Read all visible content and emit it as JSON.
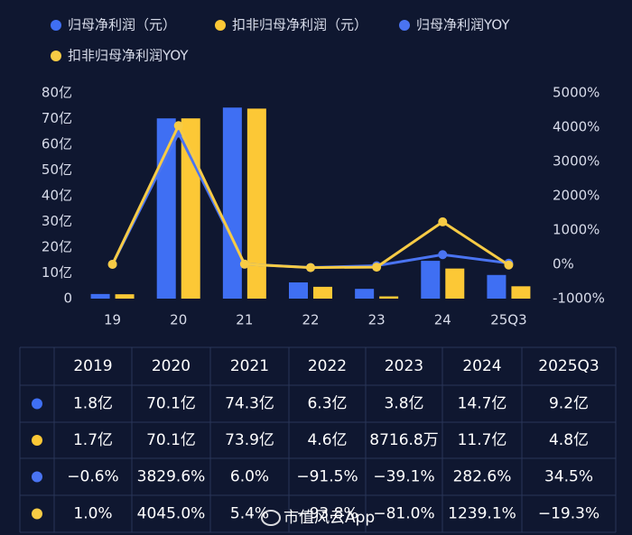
{
  "chart_data": {
    "type": "bar",
    "categories": [
      "19",
      "20",
      "21",
      "22",
      "23",
      "24",
      "25Q3"
    ],
    "series": [
      {
        "name": "归母净利润（元）",
        "type": "bar",
        "color": "#3f6ff3",
        "values": [
          1.8,
          70.1,
          74.3,
          6.3,
          3.8,
          14.7,
          9.2
        ]
      },
      {
        "name": "扣非归母净利润（元）",
        "type": "bar",
        "color": "#fcc836",
        "values": [
          1.7,
          70.1,
          73.9,
          4.6,
          0.87168,
          11.7,
          4.8
        ]
      },
      {
        "name": "归母净利润YOY",
        "type": "line",
        "axis": "y2",
        "color": "#4a74f2",
        "values": [
          -0.6,
          3829.6,
          6.0,
          -91.5,
          -39.1,
          282.6,
          34.5
        ]
      },
      {
        "name": "扣非归母净利润YOY",
        "type": "line",
        "axis": "y2",
        "color": "#f7cb45",
        "values": [
          1.0,
          4045.0,
          5.4,
          -93.8,
          -81.0,
          1239.1,
          -19.3
        ]
      }
    ],
    "ylim": [
      0,
      80
    ],
    "yticks": [
      0,
      {
        "value": 10,
        "label": "10亿"
      },
      {
        "value": 20,
        "label": "20亿"
      },
      {
        "value": 30,
        "label": "30亿"
      },
      {
        "value": 40,
        "label": "40亿"
      },
      {
        "value": 50,
        "label": "50亿"
      },
      {
        "value": 60,
        "label": "60亿"
      },
      {
        "value": 70,
        "label": "70亿"
      },
      {
        "value": 80,
        "label": "80亿"
      }
    ],
    "y2lim": [
      -1000,
      5000
    ],
    "y2ticks": [
      {
        "value": -1000,
        "label": "-1000%"
      },
      {
        "value": 0,
        "label": "0%"
      },
      {
        "value": 1000,
        "label": "1000%"
      },
      {
        "value": 2000,
        "label": "2000%"
      },
      {
        "value": 3000,
        "label": "3000%"
      },
      {
        "value": 4000,
        "label": "4000%"
      },
      {
        "value": 5000,
        "label": "5000%"
      }
    ]
  },
  "table": {
    "header": [
      "2019",
      "2020",
      "2021",
      "2022",
      "2023",
      "2024",
      "2025Q3"
    ],
    "rows": [
      [
        "1.8亿",
        "70.1亿",
        "74.3亿",
        "6.3亿",
        "3.8亿",
        "14.7亿",
        "9.2亿"
      ],
      [
        "1.7亿",
        "70.1亿",
        "73.9亿",
        "4.6亿",
        "8716.8万",
        "11.7亿",
        "4.8亿"
      ],
      [
        "−0.6%",
        "3829.6%",
        "6.0%",
        "−91.5%",
        "−39.1%",
        "282.6%",
        "34.5%"
      ],
      [
        "1.0%",
        "4045.0%",
        "5.4%",
        "−93.8%",
        "−81.0%",
        "1239.1%",
        "−19.3%"
      ]
    ]
  },
  "watermark": "市值风云App"
}
